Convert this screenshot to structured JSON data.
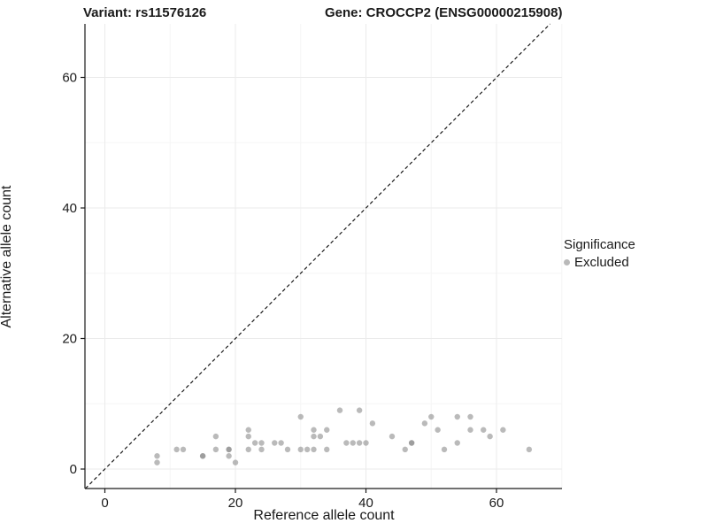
{
  "header": {
    "left_title": "Variant: rs11576126",
    "right_title": "Gene: CROCCP2 (ENSG00000215908)"
  },
  "legend": {
    "title": "Significance",
    "items": [
      {
        "label": "Excluded",
        "color": "#b9b9b9"
      }
    ]
  },
  "chart_data": {
    "type": "scatter",
    "title": "Variant: rs11576126 / Gene: CROCCP2 (ENSG00000215908)",
    "xlabel": "Reference allele count",
    "ylabel": "Alternative allele count",
    "xlim": [
      -3,
      70
    ],
    "ylim": [
      -3,
      68
    ],
    "x_ticks": [
      0,
      20,
      40,
      60
    ],
    "y_ticks": [
      0,
      20,
      40,
      60
    ],
    "x_minor_ticks": [
      10,
      30,
      50,
      70
    ],
    "y_minor_ticks": [
      10,
      30,
      50
    ],
    "grid": true,
    "legend_position": "right",
    "reference_line": "y = x, black dashed",
    "series": [
      {
        "name": "Excluded",
        "color": "#8c8c8c",
        "opacity": 0.6,
        "points": [
          [
            8,
            1
          ],
          [
            8,
            2
          ],
          [
            11,
            3
          ],
          [
            12,
            3
          ],
          [
            15,
            2
          ],
          [
            15,
            2
          ],
          [
            17,
            3
          ],
          [
            17,
            5
          ],
          [
            19,
            2
          ],
          [
            19,
            3
          ],
          [
            19,
            3
          ],
          [
            20,
            1
          ],
          [
            22,
            3
          ],
          [
            22,
            5
          ],
          [
            22,
            6
          ],
          [
            23,
            4
          ],
          [
            24,
            3
          ],
          [
            24,
            4
          ],
          [
            26,
            4
          ],
          [
            27,
            4
          ],
          [
            28,
            3
          ],
          [
            30,
            3
          ],
          [
            30,
            8
          ],
          [
            31,
            3
          ],
          [
            32,
            3
          ],
          [
            32,
            5
          ],
          [
            32,
            6
          ],
          [
            33,
            5
          ],
          [
            34,
            3
          ],
          [
            34,
            6
          ],
          [
            36,
            9
          ],
          [
            37,
            4
          ],
          [
            38,
            4
          ],
          [
            39,
            4
          ],
          [
            39,
            9
          ],
          [
            40,
            4
          ],
          [
            41,
            7
          ],
          [
            44,
            5
          ],
          [
            46,
            3
          ],
          [
            47,
            4
          ],
          [
            47,
            4
          ],
          [
            49,
            7
          ],
          [
            50,
            8
          ],
          [
            51,
            6
          ],
          [
            52,
            3
          ],
          [
            54,
            4
          ],
          [
            54,
            8
          ],
          [
            56,
            6
          ],
          [
            56,
            8
          ],
          [
            58,
            6
          ],
          [
            59,
            5
          ],
          [
            61,
            6
          ],
          [
            65,
            3
          ]
        ]
      }
    ]
  },
  "colors": {
    "background": "#ffffff",
    "grid_major": "#ebebeb",
    "grid_minor": "#f6f6f6",
    "axis_line": "#1a1a1a",
    "tick_label": "#1a1a1a",
    "point": "#8c8c8c",
    "reference_line": "#1a1a1a"
  }
}
